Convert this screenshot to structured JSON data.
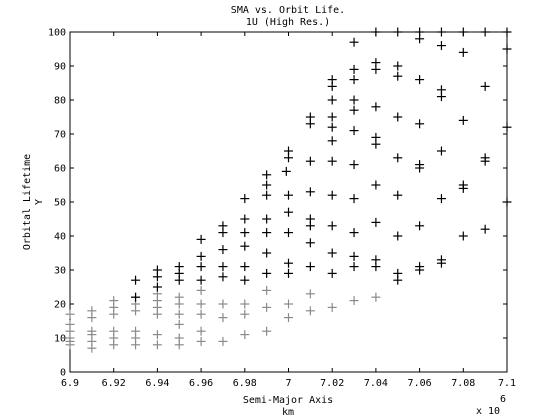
{
  "chart_data": {
    "type": "scatter",
    "title": "SMA vs. Orbit Life.",
    "subtitle": "1U (High Res.)",
    "xlabel": "Semi-Major Axis",
    "xlabel_unit": "km",
    "ylabel": "Orbital Lifetime",
    "ylabel_unit": "Y",
    "x_multiplier_base": "x 10",
    "x_multiplier_exponent": "6",
    "xlim": [
      6.9,
      7.1
    ],
    "ylim": [
      0,
      100
    ],
    "xticks": [
      "6.9",
      "6.92",
      "6.94",
      "6.96",
      "6.98",
      "7",
      "7.02",
      "7.04",
      "7.06",
      "7.08",
      "7.1"
    ],
    "yticks": [
      "0",
      "10",
      "20",
      "30",
      "40",
      "50",
      "60",
      "70",
      "80",
      "90",
      "100"
    ],
    "grid": false,
    "marker": "+",
    "series": [
      {
        "color": "#8a8a8a",
        "points": [
          [
            6.9,
            17
          ],
          [
            6.9,
            14
          ],
          [
            6.9,
            12
          ],
          [
            6.9,
            10
          ],
          [
            6.9,
            9
          ],
          [
            6.9,
            8
          ],
          [
            6.91,
            18
          ],
          [
            6.91,
            16
          ],
          [
            6.91,
            12
          ],
          [
            6.91,
            11
          ],
          [
            6.91,
            9
          ],
          [
            6.91,
            7
          ],
          [
            6.92,
            21
          ],
          [
            6.92,
            19
          ],
          [
            6.92,
            17
          ],
          [
            6.92,
            12
          ],
          [
            6.92,
            10
          ],
          [
            6.92,
            8
          ],
          [
            6.93,
            22
          ],
          [
            6.93,
            20
          ],
          [
            6.93,
            18
          ],
          [
            6.93,
            12
          ],
          [
            6.93,
            10
          ],
          [
            6.93,
            8
          ],
          [
            6.94,
            23
          ],
          [
            6.94,
            21
          ],
          [
            6.94,
            19
          ],
          [
            6.94,
            17
          ],
          [
            6.94,
            11
          ],
          [
            6.94,
            8
          ],
          [
            6.95,
            22
          ],
          [
            6.95,
            20
          ],
          [
            6.95,
            17
          ],
          [
            6.95,
            14
          ],
          [
            6.95,
            10
          ],
          [
            6.95,
            8
          ],
          [
            6.96,
            24
          ],
          [
            6.96,
            20
          ],
          [
            6.96,
            17
          ],
          [
            6.96,
            12
          ],
          [
            6.96,
            9
          ],
          [
            6.97,
            20
          ],
          [
            6.97,
            16
          ],
          [
            6.97,
            9
          ],
          [
            6.98,
            20
          ],
          [
            6.98,
            17
          ],
          [
            6.98,
            11
          ],
          [
            6.99,
            24
          ],
          [
            6.99,
            19
          ],
          [
            6.99,
            12
          ],
          [
            7.0,
            20
          ],
          [
            7.0,
            16
          ],
          [
            7.01,
            23
          ],
          [
            7.01,
            18
          ],
          [
            7.02,
            19
          ],
          [
            7.03,
            21
          ],
          [
            7.04,
            22
          ]
        ]
      },
      {
        "color": "#000000",
        "points": [
          [
            6.93,
            27
          ],
          [
            6.93,
            22
          ],
          [
            6.94,
            30
          ],
          [
            6.94,
            28
          ],
          [
            6.94,
            25
          ],
          [
            6.95,
            31
          ],
          [
            6.95,
            29
          ],
          [
            6.95,
            27
          ],
          [
            6.96,
            39
          ],
          [
            6.96,
            34
          ],
          [
            6.96,
            31
          ],
          [
            6.96,
            27
          ],
          [
            6.97,
            43
          ],
          [
            6.97,
            41
          ],
          [
            6.97,
            36
          ],
          [
            6.97,
            31
          ],
          [
            6.97,
            28
          ],
          [
            6.98,
            51
          ],
          [
            6.98,
            45
          ],
          [
            6.98,
            41
          ],
          [
            6.98,
            37
          ],
          [
            6.98,
            31
          ],
          [
            6.98,
            27
          ],
          [
            6.99,
            58
          ],
          [
            6.99,
            55
          ],
          [
            6.99,
            52
          ],
          [
            6.99,
            45
          ],
          [
            6.99,
            41
          ],
          [
            6.99,
            35
          ],
          [
            6.99,
            29
          ],
          [
            7.0,
            65
          ],
          [
            7.0,
            63
          ],
          [
            6.999,
            59
          ],
          [
            7.0,
            52
          ],
          [
            7.0,
            47
          ],
          [
            7.0,
            41
          ],
          [
            7.0,
            32
          ],
          [
            7.0,
            29
          ],
          [
            7.01,
            75
          ],
          [
            7.01,
            73
          ],
          [
            7.01,
            62
          ],
          [
            7.01,
            53
          ],
          [
            7.01,
            45
          ],
          [
            7.01,
            43
          ],
          [
            7.01,
            38
          ],
          [
            7.01,
            31
          ],
          [
            7.02,
            86
          ],
          [
            7.02,
            84
          ],
          [
            7.02,
            80
          ],
          [
            7.02,
            75
          ],
          [
            7.02,
            72
          ],
          [
            7.02,
            68
          ],
          [
            7.02,
            62
          ],
          [
            7.02,
            52
          ],
          [
            7.02,
            43
          ],
          [
            7.02,
            35
          ],
          [
            7.02,
            29
          ],
          [
            7.03,
            97
          ],
          [
            7.03,
            89
          ],
          [
            7.03,
            86
          ],
          [
            7.03,
            80
          ],
          [
            7.03,
            77
          ],
          [
            7.03,
            71
          ],
          [
            7.03,
            61
          ],
          [
            7.03,
            51
          ],
          [
            7.03,
            41
          ],
          [
            7.03,
            34
          ],
          [
            7.03,
            31
          ],
          [
            7.04,
            100
          ],
          [
            7.04,
            91
          ],
          [
            7.04,
            89
          ],
          [
            7.04,
            78
          ],
          [
            7.04,
            69
          ],
          [
            7.04,
            67
          ],
          [
            7.04,
            55
          ],
          [
            7.04,
            44
          ],
          [
            7.04,
            33
          ],
          [
            7.04,
            31
          ],
          [
            7.05,
            100
          ],
          [
            7.05,
            90
          ],
          [
            7.05,
            87
          ],
          [
            7.05,
            75
          ],
          [
            7.05,
            63
          ],
          [
            7.05,
            52
          ],
          [
            7.05,
            40
          ],
          [
            7.05,
            29
          ],
          [
            7.05,
            27
          ],
          [
            7.06,
            100
          ],
          [
            7.06,
            98
          ],
          [
            7.06,
            86
          ],
          [
            7.06,
            73
          ],
          [
            7.06,
            61
          ],
          [
            7.06,
            60
          ],
          [
            7.06,
            43
          ],
          [
            7.06,
            31
          ],
          [
            7.06,
            30
          ],
          [
            7.07,
            100
          ],
          [
            7.07,
            96
          ],
          [
            7.07,
            83
          ],
          [
            7.07,
            81
          ],
          [
            7.07,
            65
          ],
          [
            7.07,
            51
          ],
          [
            7.07,
            33
          ],
          [
            7.07,
            32
          ],
          [
            7.08,
            100
          ],
          [
            7.08,
            94
          ],
          [
            7.08,
            74
          ],
          [
            7.08,
            55
          ],
          [
            7.08,
            54
          ],
          [
            7.08,
            40
          ],
          [
            7.09,
            100
          ],
          [
            7.09,
            84
          ],
          [
            7.09,
            63
          ],
          [
            7.09,
            62
          ],
          [
            7.09,
            42
          ],
          [
            7.1,
            100
          ],
          [
            7.1,
            95
          ],
          [
            7.1,
            72
          ],
          [
            7.1,
            50
          ]
        ]
      }
    ]
  }
}
